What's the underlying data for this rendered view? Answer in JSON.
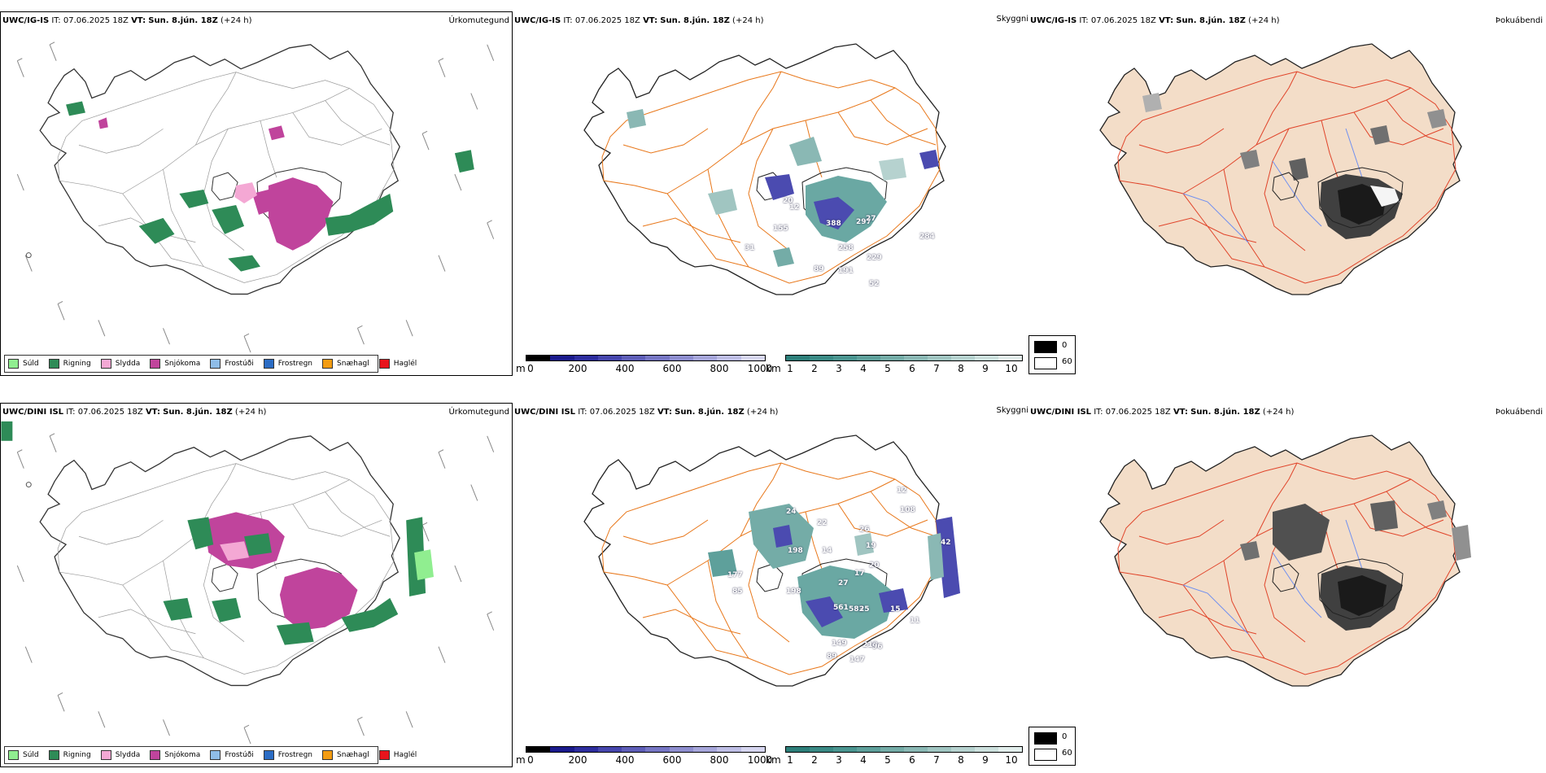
{
  "rows": [
    {
      "model": "UWC/IG-IS",
      "it_label": "IT:",
      "it_value": "07.06.2025 18Z",
      "vt_label": "VT:",
      "vt_value": "Sun. 8.jún. 18Z",
      "lead": "(+24 h)"
    },
    {
      "model": "UWC/DINI ISL",
      "it_label": "IT:",
      "it_value": "07.06.2025 18Z",
      "vt_label": "VT:",
      "vt_value": "Sun. 8.jún. 18Z",
      "lead": "(+24 h)"
    }
  ],
  "panel_types": {
    "precip": "Úrkomutegund",
    "visibility": "Skyggni",
    "fog": "Þokuábendi"
  },
  "precip_legend": [
    {
      "label": "Súld",
      "color": "#90ee90"
    },
    {
      "label": "Rigning",
      "color": "#2e8b57"
    },
    {
      "label": "Slydda",
      "color": "#f4a8d4"
    },
    {
      "label": "Snjókoma",
      "color": "#c0449c"
    },
    {
      "label": "Frostúði",
      "color": "#8fbde8"
    },
    {
      "label": "Frostregn",
      "color": "#2b6cc4"
    },
    {
      "label": "Snæhagl",
      "color": "#f39c12"
    },
    {
      "label": "Haglél",
      "color": "#e8141c"
    }
  ],
  "ceiling_bar": {
    "unit": "m",
    "ticks": [
      "0",
      "200",
      "400",
      "600",
      "800",
      "1000"
    ],
    "colors": [
      "#000000",
      "#1a1a8c",
      "#2d2d9e",
      "#4646ad",
      "#5e5eb8",
      "#7676c4",
      "#8e8ecf",
      "#a6a6da",
      "#bebee5",
      "#d6d6f0"
    ]
  },
  "vis_bar": {
    "unit": "km",
    "ticks": [
      "1",
      "2",
      "3",
      "4",
      "5",
      "6",
      "7",
      "8",
      "9",
      "10"
    ],
    "colors": [
      "#2d7f7a",
      "#3a8a85",
      "#4a9590",
      "#5ea09b",
      "#74aca7",
      "#8ab8b4",
      "#a0c5c1",
      "#b6d2cf",
      "#cce0dd",
      "#e2eeec"
    ]
  },
  "fog_legend": [
    {
      "label": "0",
      "color": "#000000"
    },
    {
      "label": "60",
      "color": "#ffffff"
    }
  ],
  "vis_labels": [
    [
      "20",
      "155",
      "388",
      "297",
      "27",
      "258",
      "284",
      "229",
      "89",
      "191",
      "52",
      "31",
      "12"
    ],
    [
      "12",
      "22",
      "24",
      "198",
      "14",
      "26",
      "19",
      "20",
      "17",
      "27",
      "177",
      "85",
      "198",
      "561",
      "583",
      "25",
      "15",
      "149",
      "210",
      "89",
      "147",
      "96",
      "108",
      "11",
      "42"
    ]
  ],
  "colors": {
    "outline": "#1a1a1a",
    "roads": "#e8771a",
    "roads_fog": "#e0442a",
    "land_fog": "#f3ddc8",
    "rivers": "#6f8ff0",
    "rain": "#2e8b57",
    "snow": "#c0449c",
    "sleet": "#f4a8d4",
    "teal": "#4a9590"
  }
}
